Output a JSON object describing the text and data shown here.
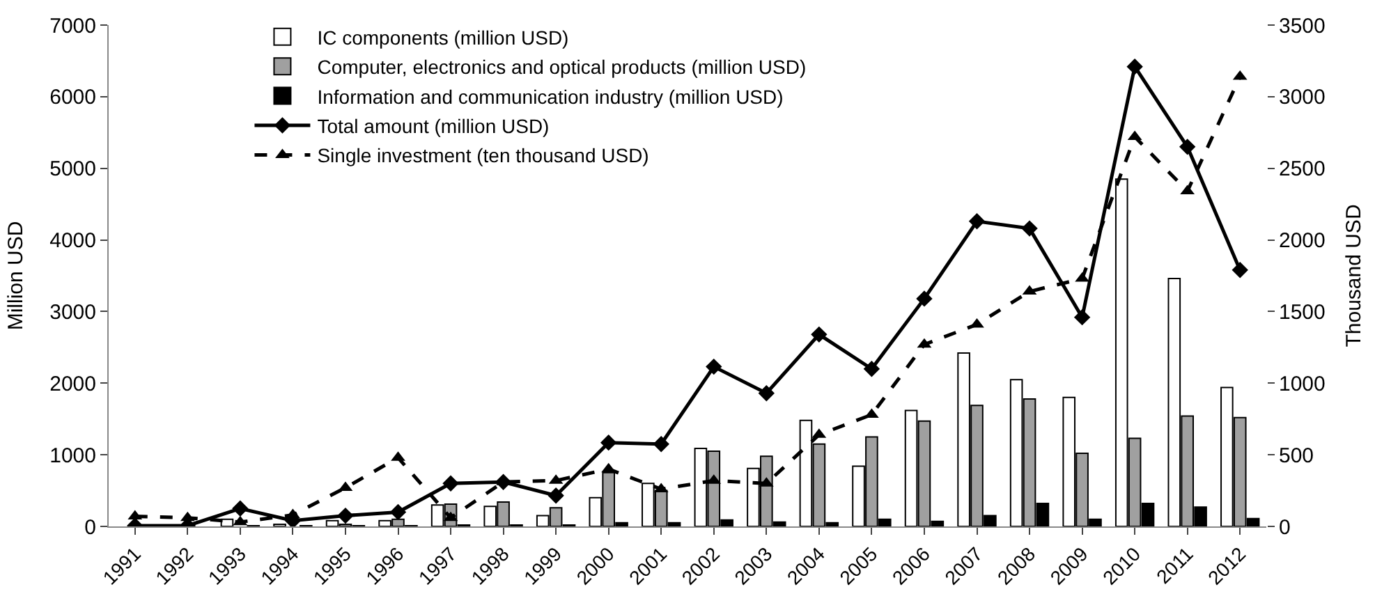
{
  "chart_data": {
    "type": "bar",
    "categories": [
      "1991",
      "1992",
      "1993",
      "1994",
      "1995",
      "1996",
      "1997",
      "1998",
      "1999",
      "2000",
      "2001",
      "2002",
      "2003",
      "2004",
      "2005",
      "2006",
      "2007",
      "2008",
      "2009",
      "2010",
      "2011",
      "2012"
    ],
    "ylabel": "Million USD",
    "y2label": "Thousand USD",
    "ylim": [
      0,
      7000
    ],
    "yticks": [
      0,
      1000,
      2000,
      3000,
      4000,
      5000,
      6000,
      7000
    ],
    "y2lim": [
      0,
      3500
    ],
    "y2ticks": [
      0,
      500,
      1000,
      1500,
      2000,
      2500,
      3000,
      3500
    ],
    "grid": false,
    "legend": "top left",
    "series": [
      {
        "name": "IC components (million USD)",
        "color": "#ffffff",
        "values": [
          null,
          null,
          100,
          30,
          80,
          80,
          300,
          280,
          150,
          400,
          600,
          1090,
          810,
          1480,
          840,
          1620,
          2420,
          2050,
          1800,
          4850,
          3460,
          1940
        ]
      },
      {
        "name": "Computer, electronics and optical products (million USD)",
        "color": "#a0a0a0",
        "values": [
          null,
          null,
          null,
          null,
          30,
          100,
          310,
          340,
          260,
          750,
          500,
          1050,
          980,
          1150,
          1250,
          1470,
          1690,
          1780,
          1020,
          1230,
          1540,
          1520
        ]
      },
      {
        "name": "Information and communication industry (million USD)",
        "color": "#000000",
        "values": [
          null,
          null,
          10,
          10,
          10,
          10,
          20,
          20,
          20,
          50,
          50,
          90,
          60,
          50,
          100,
          70,
          150,
          320,
          100,
          320,
          270,
          110
        ]
      },
      {
        "name": "Total amount (million USD)",
        "type": "line",
        "color": "#000000",
        "marker": "diamond",
        "line_style": "solid",
        "values": [
          10,
          10,
          250,
          80,
          150,
          200,
          600,
          620,
          430,
          1170,
          1150,
          2230,
          1860,
          2680,
          2200,
          3180,
          4260,
          4160,
          2920,
          6420,
          5300,
          3580
        ]
      },
      {
        "name": "Single investment (ten thousand USD)",
        "type": "line",
        "axis": "y2",
        "color": "#000000",
        "marker": "triangle",
        "line_style": "dashed",
        "values": [
          70,
          60,
          30,
          80,
          270,
          480,
          60,
          310,
          320,
          400,
          260,
          320,
          300,
          640,
          780,
          1270,
          1410,
          1640,
          1730,
          2720,
          2340,
          3140
        ]
      }
    ]
  }
}
